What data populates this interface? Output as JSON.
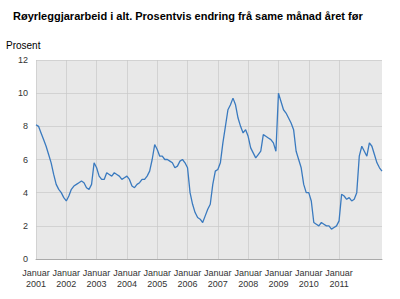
{
  "chart_data": {
    "type": "line",
    "title": "Røyrleggjararbeid i alt. Prosentvis endring frå same månad året før",
    "ylabel": "Prosent",
    "color": "#3a7abf",
    "grid": true,
    "ylim": [
      0,
      12
    ],
    "yticks": [
      0,
      2,
      4,
      6,
      8,
      10,
      12
    ],
    "categories": [
      "Januar\n2001",
      null,
      null,
      null,
      null,
      null,
      null,
      null,
      null,
      null,
      null,
      null,
      "Januar\n2002",
      null,
      null,
      null,
      null,
      null,
      null,
      null,
      null,
      null,
      null,
      null,
      "Januar\n2003",
      null,
      null,
      null,
      null,
      null,
      null,
      null,
      null,
      null,
      null,
      null,
      "Januar\n2004",
      null,
      null,
      null,
      null,
      null,
      null,
      null,
      null,
      null,
      null,
      null,
      "Januar\n2005",
      null,
      null,
      null,
      null,
      null,
      null,
      null,
      null,
      null,
      null,
      null,
      "Januar\n2006",
      null,
      null,
      null,
      null,
      null,
      null,
      null,
      null,
      null,
      null,
      null,
      "Januar\n2007",
      null,
      null,
      null,
      null,
      null,
      null,
      null,
      null,
      null,
      null,
      null,
      "Januar\n2008",
      null,
      null,
      null,
      null,
      null,
      null,
      null,
      null,
      null,
      null,
      null,
      "Januar\n2009",
      null,
      null,
      null,
      null,
      null,
      null,
      null,
      null,
      null,
      null,
      null,
      "Januar\n2010",
      null,
      null,
      null,
      null,
      null,
      null,
      null,
      null,
      null,
      null,
      null,
      "Januar\n2011",
      null,
      null,
      null,
      null,
      null,
      null,
      null,
      null,
      null,
      null,
      null,
      null,
      null,
      null,
      null,
      null,
      null
    ],
    "values": [
      8.1,
      8.0,
      7.6,
      7.2,
      6.8,
      6.3,
      5.8,
      5.1,
      4.5,
      4.2,
      4.0,
      3.7,
      3.5,
      3.8,
      4.2,
      4.4,
      4.5,
      4.6,
      4.7,
      4.6,
      4.3,
      4.2,
      4.5,
      5.8,
      5.5,
      5.0,
      4.8,
      4.8,
      5.2,
      5.1,
      5.0,
      5.2,
      5.1,
      5.0,
      4.8,
      4.9,
      5.0,
      4.8,
      4.4,
      4.3,
      4.5,
      4.6,
      4.8,
      4.8,
      5.0,
      5.3,
      6.0,
      6.9,
      6.6,
      6.2,
      6.2,
      6.0,
      6.0,
      5.9,
      5.8,
      5.5,
      5.6,
      5.9,
      6.0,
      5.8,
      5.5,
      4.0,
      3.3,
      2.8,
      2.5,
      2.4,
      2.2,
      2.6,
      3.0,
      3.3,
      4.5,
      5.3,
      5.4,
      5.8,
      7.0,
      8.0,
      9.0,
      9.3,
      9.7,
      9.3,
      8.5,
      8.0,
      7.6,
      7.8,
      7.4,
      6.7,
      6.4,
      6.1,
      6.3,
      6.5,
      7.5,
      7.4,
      7.3,
      7.2,
      7.0,
      6.5,
      10.0,
      9.5,
      9.0,
      8.8,
      8.5,
      8.2,
      7.8,
      6.5,
      6.0,
      5.5,
      4.5,
      4.0,
      4.0,
      3.5,
      2.2,
      2.1,
      2.0,
      2.2,
      2.1,
      2.0,
      2.0,
      1.8,
      1.9,
      2.0,
      2.3,
      3.9,
      3.8,
      3.6,
      3.7,
      3.5,
      3.6,
      4.0,
      6.2,
      6.8,
      6.5,
      6.2,
      7.0,
      6.8,
      6.3,
      5.8,
      5.5,
      5.3
    ]
  }
}
